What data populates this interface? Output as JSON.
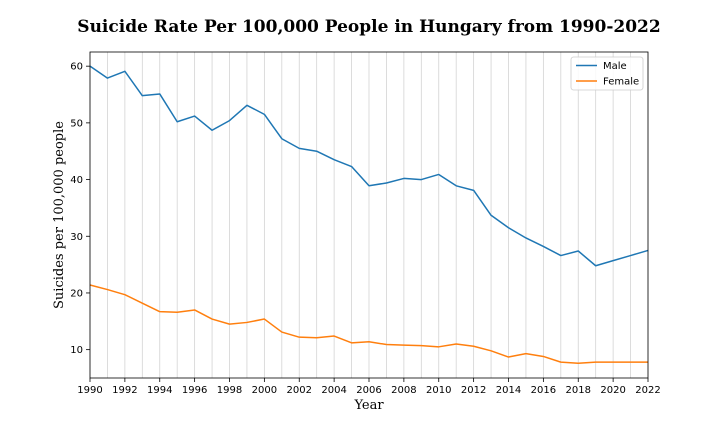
{
  "chart_data": {
    "type": "line",
    "title": "Suicide Rate Per 100,000 People in Hungary from 1990-2022",
    "xlabel": "Year",
    "ylabel": "Suicides per 100,000 people",
    "xlim": [
      1990,
      2022
    ],
    "ylim": [
      5,
      62.5
    ],
    "x_ticks": [
      1990,
      1992,
      1994,
      1996,
      1998,
      2000,
      2002,
      2004,
      2006,
      2008,
      2010,
      2012,
      2014,
      2016,
      2018,
      2020,
      2022
    ],
    "y_ticks": [
      10,
      20,
      30,
      40,
      50,
      60
    ],
    "x_gridlines": "every year",
    "legend_position": "top-right",
    "x": [
      1990,
      1991,
      1992,
      1993,
      1994,
      1995,
      1996,
      1997,
      1998,
      1999,
      2000,
      2001,
      2002,
      2003,
      2004,
      2005,
      2006,
      2007,
      2008,
      2009,
      2010,
      2011,
      2012,
      2013,
      2014,
      2015,
      2016,
      2017,
      2018,
      2019,
      2020,
      2021,
      2022
    ],
    "series": [
      {
        "name": "Male",
        "color": "#1f77b4",
        "values": [
          60.0,
          57.9,
          59.1,
          54.8,
          55.1,
          50.2,
          51.2,
          48.7,
          50.4,
          53.1,
          51.5,
          47.2,
          45.5,
          45.0,
          43.5,
          42.3,
          38.9,
          39.4,
          40.2,
          40.0,
          40.9,
          38.9,
          38.1,
          33.7,
          31.5,
          29.7,
          28.2,
          26.6,
          27.4,
          24.8,
          25.7,
          26.6,
          27.5
        ]
      },
      {
        "name": "Female",
        "color": "#ff7f0e",
        "values": [
          21.4,
          20.6,
          19.7,
          18.2,
          16.7,
          16.6,
          17.0,
          15.4,
          14.5,
          14.8,
          15.4,
          13.1,
          12.2,
          12.1,
          12.4,
          11.2,
          11.4,
          10.9,
          10.8,
          10.7,
          10.5,
          11.0,
          10.6,
          9.8,
          8.7,
          9.3,
          8.8,
          7.8,
          7.6,
          7.8,
          7.8,
          7.8,
          7.8
        ]
      }
    ]
  }
}
